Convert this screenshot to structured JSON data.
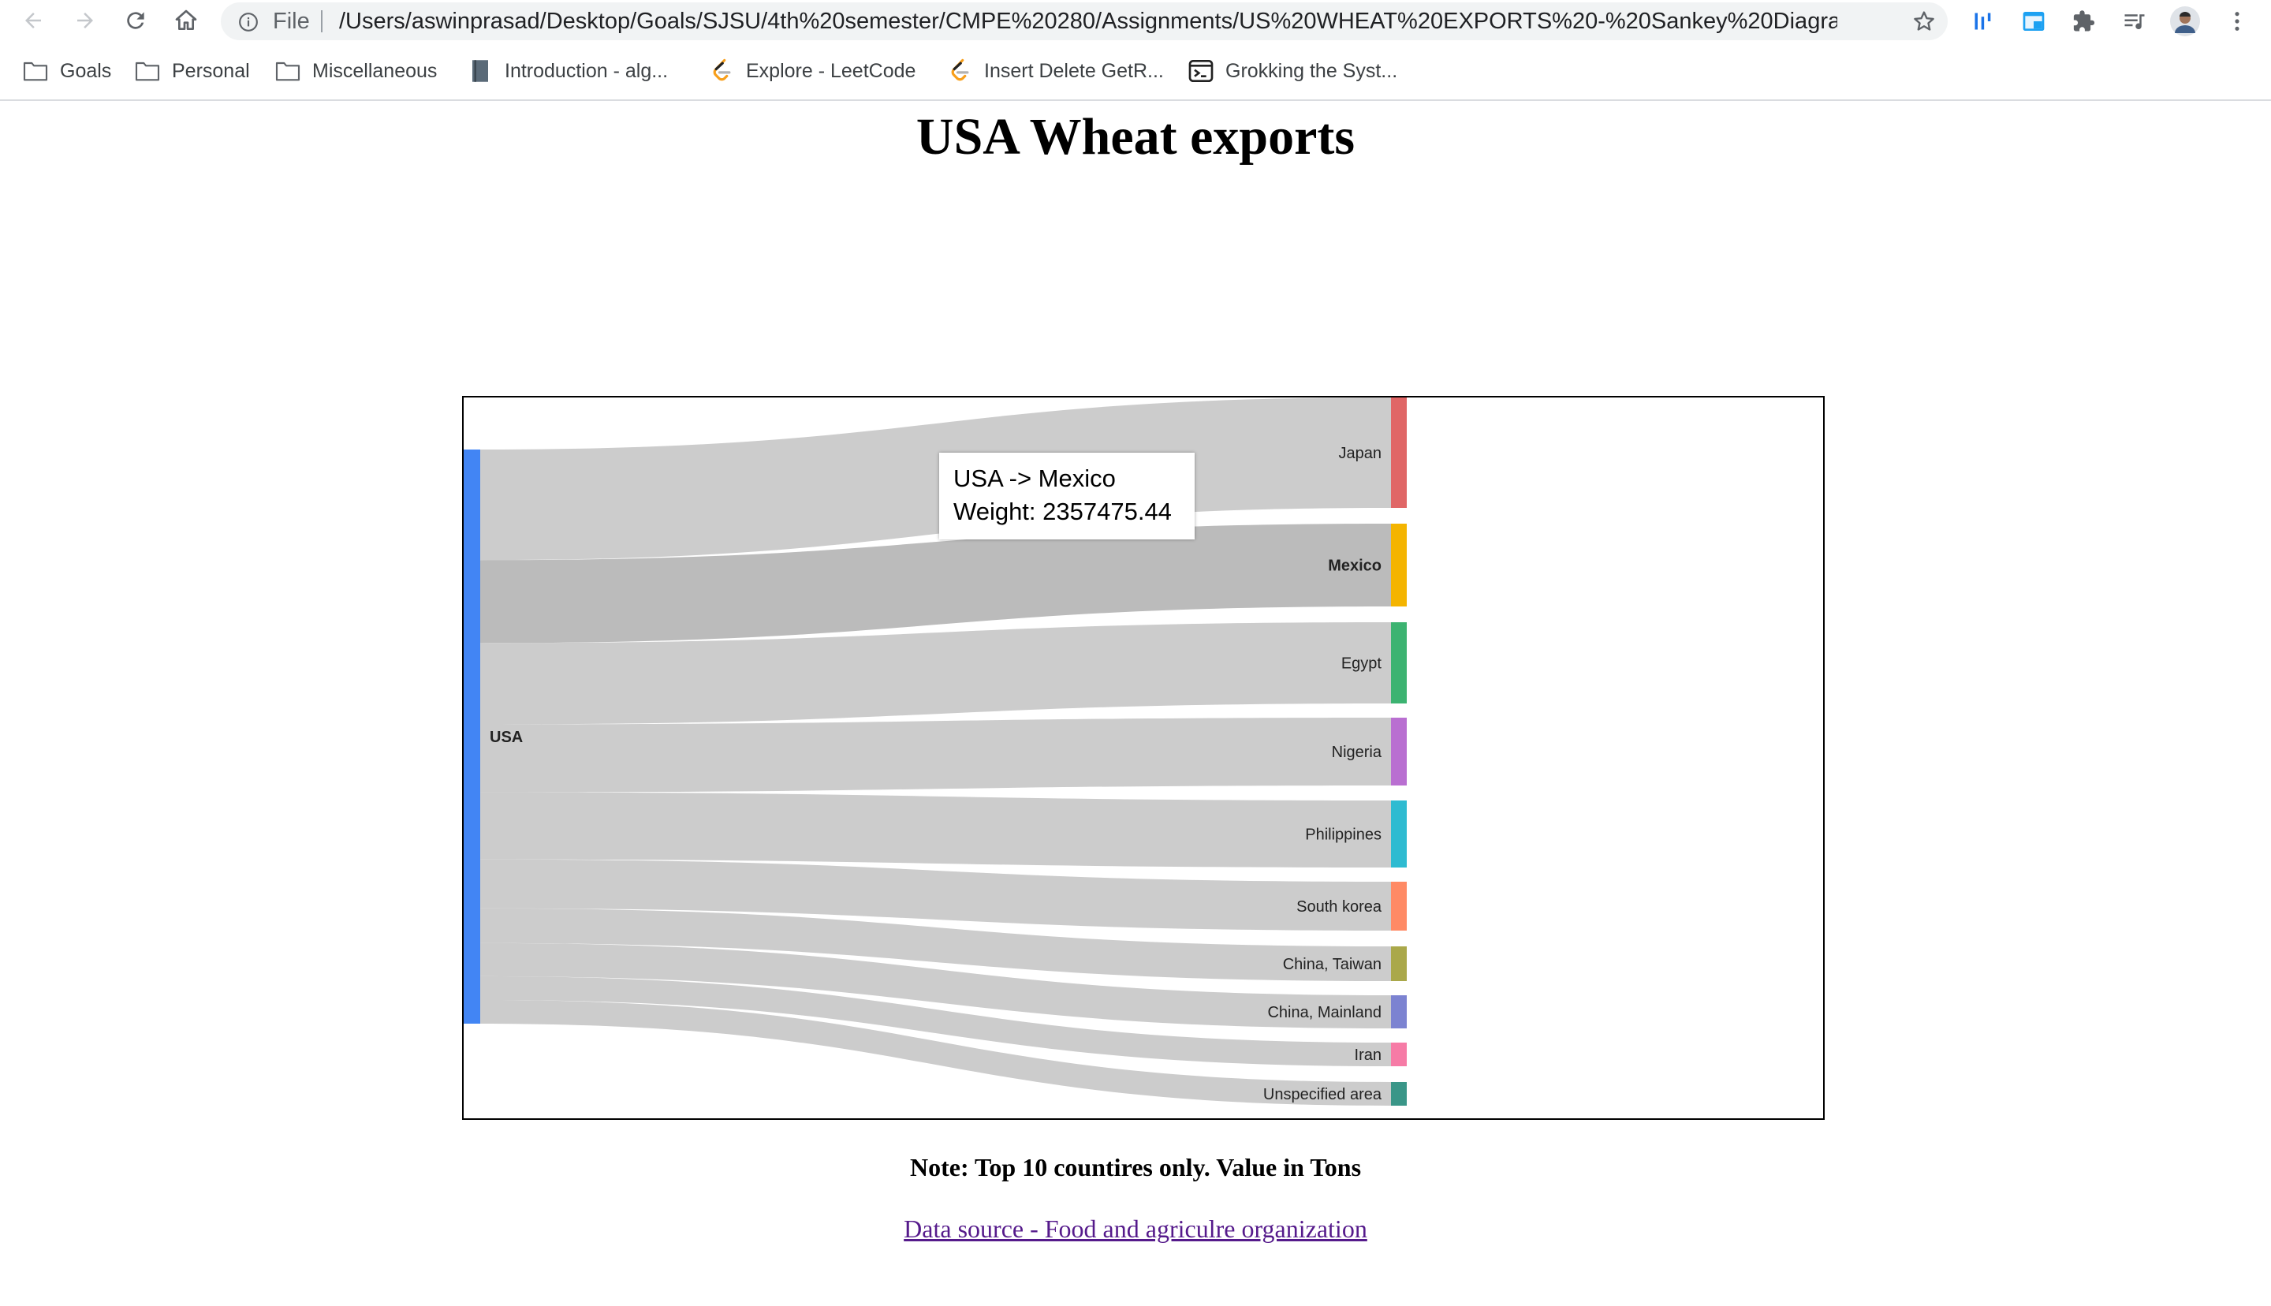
{
  "browser": {
    "omnibox_prefix": "File",
    "url": "/Users/aswinprasad/Desktop/Goals/SJSU/4th%20semester/CMPE%20280/Assignments/US%20WHEAT%20EXPORTS%20-%20Sankey%20Diagra..."
  },
  "bookmarks": [
    {
      "label": "Goals",
      "icon": "folder-icon"
    },
    {
      "label": "Personal",
      "icon": "folder-icon"
    },
    {
      "label": "Miscellaneous",
      "icon": "folder-icon"
    },
    {
      "label": "Introduction - alg...",
      "icon": "book-icon"
    },
    {
      "label": "Explore - LeetCode",
      "icon": "leetcode-icon"
    },
    {
      "label": "Insert Delete GetR...",
      "icon": "leetcode-icon"
    },
    {
      "label": "Grokking the Syst...",
      "icon": "terminal-icon"
    }
  ],
  "page": {
    "title": "USA Wheat exports",
    "note": "Note: Top 10 countires only. Value in Tons",
    "source_link": "Data source - Food and agriculre organization"
  },
  "tooltip": {
    "line1": "USA -> Mexico",
    "line2": "Weight: 2357475.44"
  },
  "chart_data": {
    "type": "sankey",
    "source": {
      "name": "USA",
      "color": "#4285f4"
    },
    "highlighted_target": "Mexico",
    "flows": [
      {
        "target": "Japan",
        "color": "#e06666"
      },
      {
        "target": "Mexico",
        "color": "#f4b400",
        "weight": 2357475.44
      },
      {
        "target": "Egypt",
        "color": "#3cb371"
      },
      {
        "target": "Nigeria",
        "color": "#b96fd1"
      },
      {
        "target": "Philippines",
        "color": "#2ebbd1"
      },
      {
        "target": "South korea",
        "color": "#ff8a65"
      },
      {
        "target": "China, Taiwan",
        "color": "#aaa84a"
      },
      {
        "target": "China, Mainland",
        "color": "#7c83d1"
      },
      {
        "target": "Iran",
        "color": "#f67ba6"
      },
      {
        "target": "Unspecified area",
        "color": "#3a9688"
      }
    ]
  }
}
